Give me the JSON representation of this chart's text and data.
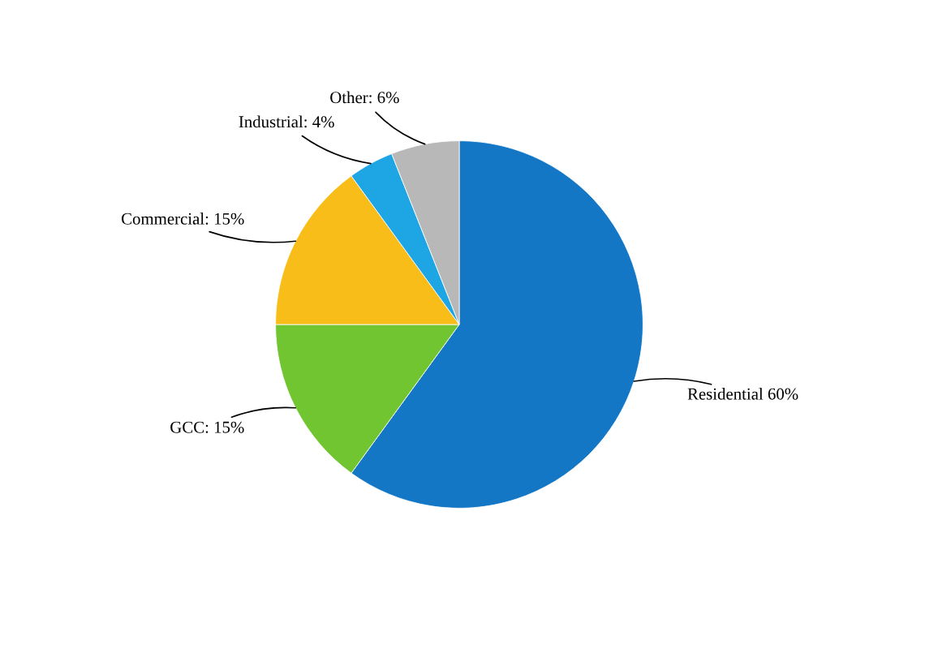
{
  "chart_data": {
    "type": "pie",
    "categories": [
      "Residential 60%",
      "GCC: 15%",
      "Commercial: 15%",
      "Industrial: 4%",
      "Other: 6%"
    ],
    "values": [
      60,
      15,
      15,
      4,
      6
    ],
    "colors": [
      "#1477c6",
      "#70c531",
      "#f9bd1a",
      "#1ea5e4",
      "#b8b8b8"
    ],
    "legend": false
  }
}
